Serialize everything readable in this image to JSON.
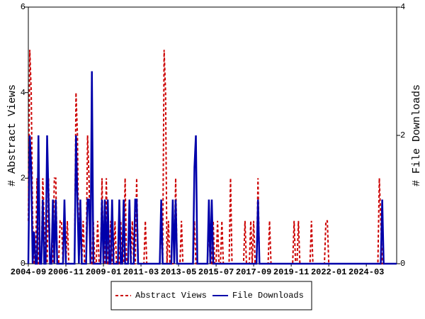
{
  "chart_data": {
    "type": "line",
    "y_label": "# Abstract Views",
    "y2_label": "# File Downloads",
    "categories": [
      "2004-09",
      null,
      null,
      null,
      null,
      null,
      null,
      null,
      null,
      null,
      null,
      null,
      null,
      null,
      null,
      null,
      null,
      null,
      null,
      null,
      null,
      null,
      null,
      null,
      null,
      null,
      "2006-11",
      null,
      null,
      null,
      null,
      null,
      null,
      null,
      null,
      null,
      null,
      null,
      null,
      null,
      null,
      null,
      null,
      null,
      null,
      null,
      null,
      null,
      null,
      null,
      null,
      null,
      "2009-01",
      null,
      null,
      null,
      null,
      null,
      null,
      null,
      null,
      null,
      null,
      null,
      null,
      null,
      null,
      null,
      null,
      null,
      null,
      null,
      null,
      null,
      null,
      null,
      null,
      null,
      "2011-03",
      null,
      null,
      null,
      null,
      null,
      null,
      null,
      null,
      null,
      null,
      null,
      null,
      null,
      null,
      null,
      null,
      null,
      null,
      null,
      null,
      null,
      null,
      null,
      null,
      null,
      "2013-05",
      null,
      null,
      null,
      null,
      null,
      null,
      null,
      null,
      null,
      null,
      null,
      null,
      null,
      null,
      null,
      null,
      null,
      null,
      null,
      null,
      null,
      null,
      null,
      null,
      null,
      "2015-07",
      null,
      null,
      null,
      null,
      null,
      null,
      null,
      null,
      null,
      null,
      null,
      null,
      null,
      null,
      null,
      null,
      null,
      null,
      null,
      null,
      null,
      null,
      null,
      null,
      null,
      "2017-09",
      null,
      null,
      null,
      null,
      null,
      null,
      null,
      null,
      null,
      null,
      null,
      null,
      null,
      null,
      null,
      null,
      null,
      null,
      null,
      null,
      null,
      null,
      null,
      null,
      null,
      "2019-11",
      null,
      null,
      null,
      null,
      null,
      null,
      null,
      null,
      null,
      null,
      null,
      null,
      null,
      null,
      null,
      null,
      null,
      null,
      null,
      null,
      null,
      null,
      null,
      null,
      null,
      "2022-01",
      null,
      null,
      null,
      null,
      null,
      null,
      null,
      null,
      null,
      null,
      null,
      null,
      null,
      null,
      null,
      null,
      null,
      null,
      null,
      null,
      null,
      null,
      null,
      null,
      null,
      "2024-03",
      null,
      null,
      null,
      null,
      null,
      null,
      null,
      null,
      null,
      null,
      null,
      null,
      null,
      null,
      null,
      null,
      null,
      null,
      null,
      null,
      null
    ],
    "series": [
      {
        "name": "Abstract Views",
        "color": "#cc0000",
        "dashed": true,
        "values": [
          1,
          5,
          4,
          1,
          0,
          0,
          2,
          0,
          0,
          0,
          2,
          1,
          0,
          0,
          2,
          0,
          0,
          0,
          2,
          2,
          0,
          0,
          1,
          1,
          0,
          0,
          0,
          1,
          0,
          0,
          0,
          0,
          0,
          4,
          3,
          0,
          1,
          0,
          1,
          0,
          0,
          3,
          2,
          0,
          0,
          1,
          0,
          0,
          1,
          0,
          0,
          2,
          0,
          0,
          2,
          0,
          0,
          1,
          0,
          0,
          1,
          0,
          0,
          0,
          1,
          0,
          0,
          2,
          0,
          0,
          0,
          0,
          1,
          0,
          0,
          2,
          0,
          0,
          0,
          0,
          0,
          1,
          0,
          0,
          0,
          0,
          0,
          0,
          0,
          0,
          0,
          0,
          1,
          0,
          5,
          4,
          0,
          1,
          0,
          0,
          0,
          0,
          2,
          0,
          0,
          0,
          1,
          0,
          0,
          0,
          0,
          0,
          0,
          0,
          0,
          1,
          0,
          0,
          0,
          0,
          0,
          0,
          0,
          0,
          0,
          1,
          0,
          0,
          1,
          0,
          0,
          1,
          0,
          0,
          1,
          0,
          0,
          0,
          0,
          0,
          2,
          0,
          0,
          0,
          0,
          0,
          0,
          0,
          0,
          0,
          1,
          0,
          0,
          0,
          1,
          0,
          1,
          0,
          0,
          2,
          0,
          0,
          0,
          0,
          0,
          0,
          0,
          1,
          0,
          0,
          0,
          0,
          0,
          0,
          0,
          0,
          0,
          0,
          0,
          0,
          0,
          0,
          0,
          0,
          1,
          0,
          0,
          1,
          0,
          0,
          0,
          0,
          0,
          0,
          0,
          0,
          1,
          0,
          0,
          0,
          0,
          0,
          0,
          0,
          0,
          0,
          1,
          1,
          0,
          0,
          0,
          0,
          0,
          0,
          0,
          0,
          0,
          0,
          0,
          0,
          0,
          0,
          0,
          0,
          0,
          0,
          0,
          0,
          0,
          0,
          0,
          0,
          0,
          0,
          0,
          0,
          0,
          0,
          0,
          0,
          0,
          0,
          0,
          2,
          1,
          0,
          0,
          0,
          0,
          0,
          0,
          0,
          0,
          0,
          0,
          0
        ]
      },
      {
        "name": "File Downloads",
        "color": "#0000aa",
        "axis": "y2",
        "values": [
          0,
          2,
          1.5,
          0,
          0.5,
          0,
          0,
          2,
          0,
          0,
          1,
          0,
          0,
          2,
          1,
          0,
          0,
          1,
          0,
          1,
          0,
          0,
          0,
          0,
          0,
          1,
          0,
          0,
          0,
          0,
          0,
          0,
          0,
          2,
          1,
          0,
          1,
          0,
          0,
          0,
          0,
          1,
          1,
          0,
          3,
          0,
          0,
          0,
          0,
          0,
          0,
          1,
          0,
          1,
          0,
          1,
          0,
          0,
          1,
          0,
          0,
          0,
          0,
          1,
          0,
          0,
          1,
          0,
          0,
          0,
          1,
          0,
          0,
          0,
          1,
          1,
          0,
          0,
          0,
          0,
          0,
          0,
          0,
          0,
          0,
          0,
          0,
          0,
          0,
          0,
          0,
          0,
          1,
          0,
          0,
          0,
          0,
          0,
          0,
          0,
          1,
          0,
          1,
          0,
          0,
          0,
          0,
          0,
          0,
          0,
          0,
          0,
          0,
          0,
          0,
          1.5,
          2,
          0,
          0,
          0,
          0,
          0,
          0,
          0,
          0,
          1,
          0,
          1,
          0,
          0,
          0,
          0,
          0,
          0,
          0,
          0,
          0,
          0,
          0,
          0,
          0,
          0,
          0,
          0,
          0,
          0,
          0,
          0,
          0,
          0,
          0,
          0,
          0,
          0,
          0,
          0,
          0,
          0,
          0,
          1,
          0,
          0,
          0,
          0,
          0,
          0,
          0,
          0,
          0,
          0,
          0,
          0,
          0,
          0,
          0,
          0,
          0,
          0,
          0,
          0,
          0,
          0,
          0,
          0,
          0,
          0,
          0,
          0,
          0,
          0,
          0,
          0,
          0,
          0,
          0,
          0,
          0,
          0,
          0,
          0,
          0,
          0,
          0,
          0,
          0,
          0,
          0,
          0,
          0,
          0,
          0,
          0,
          0,
          0,
          0,
          0,
          0,
          0,
          0,
          0,
          0,
          0,
          0,
          0,
          0,
          0,
          0,
          0,
          0,
          0,
          0,
          0,
          0,
          0,
          0,
          0,
          0,
          0,
          0,
          0,
          0,
          0,
          0,
          0,
          0,
          1,
          0,
          0,
          0,
          0,
          0,
          0,
          0,
          0,
          0,
          0
        ]
      }
    ],
    "ylim": [
      0,
      6
    ],
    "yticks": [
      0,
      2,
      4,
      6
    ],
    "y2lim": [
      0,
      4
    ],
    "y2ticks": [
      0,
      2,
      4
    ]
  }
}
